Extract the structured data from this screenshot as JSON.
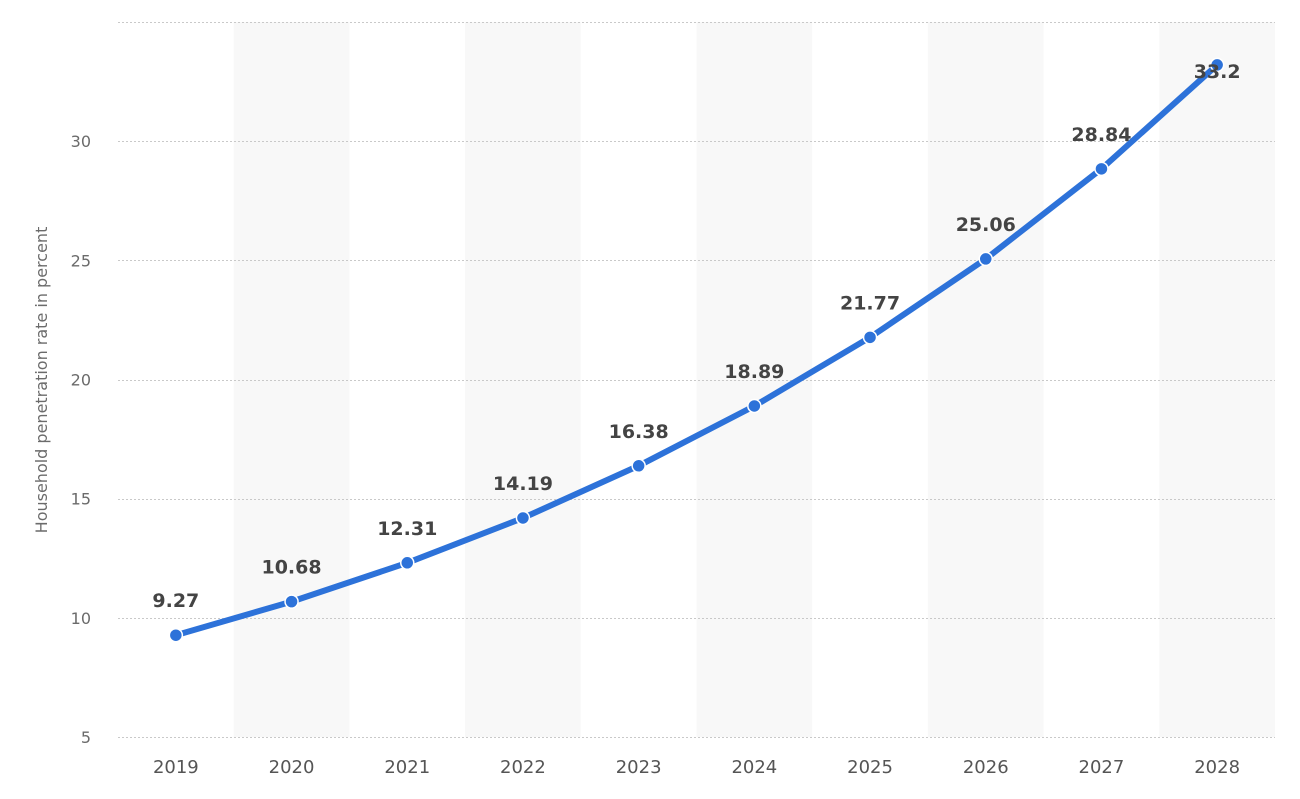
{
  "chart_data": {
    "type": "line",
    "title": "",
    "xlabel": "",
    "ylabel": "Household penetration rate in percent",
    "categories": [
      "2019",
      "2020",
      "2021",
      "2022",
      "2023",
      "2024",
      "2025",
      "2026",
      "2027",
      "2028"
    ],
    "series": [
      {
        "values": [
          9.27,
          10.68,
          12.31,
          14.19,
          16.38,
          18.89,
          21.77,
          25.06,
          28.84,
          33.2
        ],
        "labels": [
          "9.27",
          "10.68",
          "12.31",
          "14.19",
          "16.38",
          "18.89",
          "21.77",
          "25.06",
          "28.84",
          "33.2"
        ]
      }
    ],
    "yticks": [
      "5",
      "10",
      "15",
      "20",
      "25",
      "30"
    ],
    "ylim": [
      5,
      35
    ],
    "grid": true,
    "legend": "none",
    "colors": {
      "line": "#2d72d9",
      "band": "#f8f8f8",
      "grid": "#c9c9c9"
    }
  }
}
